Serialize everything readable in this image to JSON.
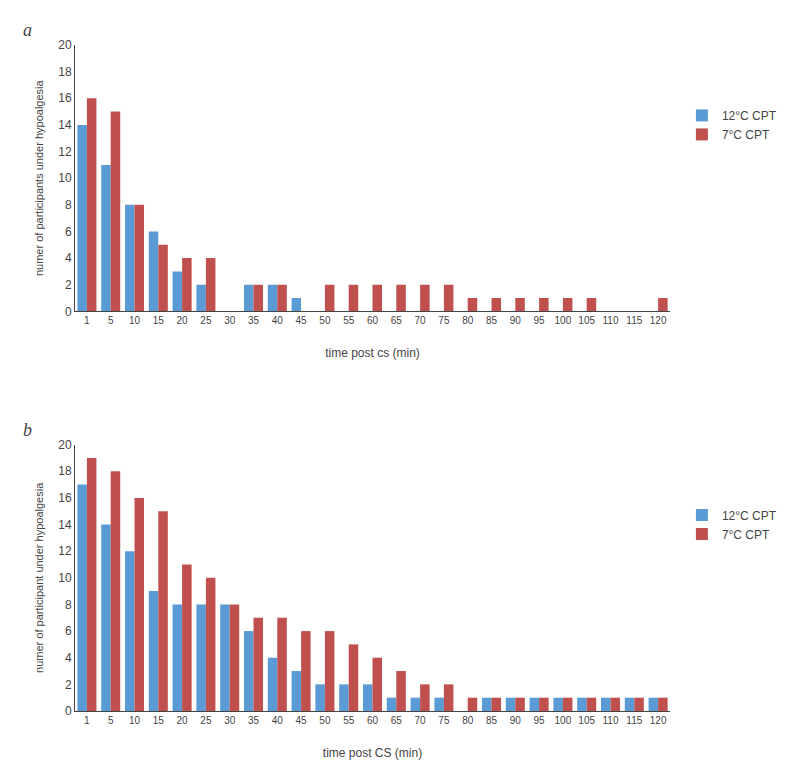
{
  "chart_data": [
    {
      "type": "bar",
      "annotations": [
        "a"
      ],
      "xlabel": "time post cs (min)",
      "ylabel": "numer of participants under hypoalgesia",
      "categories": [
        "1",
        "5",
        "10",
        "15",
        "20",
        "25",
        "30",
        "35",
        "40",
        "45",
        "50",
        "55",
        "60",
        "65",
        "70",
        "75",
        "80",
        "85",
        "90",
        "95",
        "100",
        "105",
        "110",
        "115",
        "120"
      ],
      "series": [
        {
          "name": "12°C CPT",
          "color": "#5B9BD5",
          "values": [
            14,
            11,
            8,
            6,
            3,
            2,
            0,
            2,
            2,
            1,
            0,
            0,
            0,
            0,
            0,
            0,
            0,
            0,
            0,
            0,
            0,
            0,
            0,
            0,
            0
          ]
        },
        {
          "name": "7°C CPT",
          "color": "#C0504D",
          "values": [
            16,
            15,
            8,
            5,
            4,
            4,
            0,
            2,
            2,
            0,
            2,
            2,
            2,
            2,
            2,
            2,
            1,
            1,
            1,
            1,
            1,
            1,
            0,
            0,
            1
          ]
        }
      ],
      "ylim": [
        0,
        20
      ],
      "yticks": [
        0,
        2,
        4,
        6,
        8,
        10,
        12,
        14,
        16,
        18,
        20
      ],
      "grid": false,
      "legend": "right"
    },
    {
      "type": "bar",
      "annotations": [
        "b"
      ],
      "xlabel": "time post CS (min)",
      "ylabel": "numer of participant under hypoalgesia",
      "categories": [
        "1",
        "5",
        "10",
        "15",
        "20",
        "25",
        "30",
        "35",
        "40",
        "45",
        "50",
        "55",
        "60",
        "65",
        "70",
        "75",
        "80",
        "85",
        "90",
        "95",
        "100",
        "105",
        "110",
        "115",
        "120"
      ],
      "series": [
        {
          "name": "12°C CPT",
          "color": "#5B9BD5",
          "values": [
            17,
            14,
            12,
            9,
            8,
            8,
            8,
            6,
            4,
            3,
            2,
            2,
            2,
            1,
            1,
            1,
            0,
            1,
            1,
            1,
            1,
            1,
            1,
            1,
            1
          ]
        },
        {
          "name": "7°C CPT",
          "color": "#C0504D",
          "values": [
            19,
            18,
            16,
            15,
            11,
            10,
            8,
            7,
            7,
            6,
            6,
            5,
            4,
            3,
            2,
            2,
            1,
            1,
            1,
            1,
            1,
            1,
            1,
            1,
            1
          ]
        }
      ],
      "ylim": [
        0,
        20
      ],
      "yticks": [
        0,
        2,
        4,
        6,
        8,
        10,
        12,
        14,
        16,
        18,
        20
      ],
      "grid": false,
      "legend": "right"
    }
  ]
}
